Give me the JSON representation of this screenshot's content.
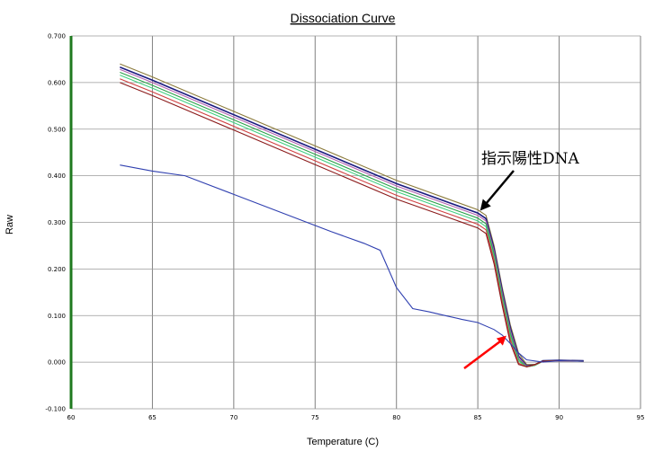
{
  "chart_data": {
    "type": "line",
    "title": "Dissociation Curve",
    "xlabel": "Temperature (C)",
    "ylabel": "Raw",
    "xlim": [
      60,
      95
    ],
    "ylim": [
      -0.1,
      0.7
    ],
    "xticks": [
      60,
      65,
      70,
      75,
      80,
      85,
      90,
      95
    ],
    "yticks": [
      -0.1,
      0.0,
      0.1,
      0.2,
      0.3,
      0.4,
      0.5,
      0.6,
      0.7
    ],
    "ytick_labels": [
      "-0.100",
      "0.000",
      "0.100",
      "0.200",
      "0.300",
      "0.400",
      "0.500",
      "0.600",
      "0.700"
    ],
    "grid": true,
    "series": [
      {
        "color": "#8b7a3a",
        "x": [
          63,
          65,
          70,
          75,
          80,
          85,
          85.5,
          86,
          86.5,
          87,
          87.5,
          88,
          88.5,
          89,
          90,
          91.5
        ],
        "y": [
          0.64,
          0.612,
          0.538,
          0.464,
          0.39,
          0.327,
          0.315,
          0.25,
          0.16,
          0.08,
          0.02,
          -0.005,
          -0.005,
          0.003,
          0.004,
          0.003
        ]
      },
      {
        "color": "#1a1a80",
        "x": [
          63,
          65,
          70,
          75,
          80,
          85,
          85.5,
          86,
          86.5,
          87,
          87.5,
          88,
          88.5,
          89,
          90,
          91.5
        ],
        "y": [
          0.633,
          0.605,
          0.531,
          0.457,
          0.383,
          0.32,
          0.308,
          0.243,
          0.153,
          0.073,
          0.013,
          -0.008,
          -0.006,
          0.003,
          0.004,
          0.003
        ]
      },
      {
        "color": "#b060b0",
        "x": [
          63,
          65,
          70,
          75,
          80,
          85,
          85.5,
          86,
          86.5,
          87,
          87.5,
          88,
          88.5,
          89,
          90,
          91.5
        ],
        "y": [
          0.628,
          0.6,
          0.526,
          0.452,
          0.378,
          0.315,
          0.303,
          0.238,
          0.148,
          0.068,
          0.01,
          -0.009,
          -0.006,
          0.002,
          0.003,
          0.002
        ]
      },
      {
        "color": "#2aa04a",
        "x": [
          63,
          65,
          70,
          75,
          80,
          85,
          85.5,
          86,
          86.5,
          87,
          87.5,
          88,
          88.5,
          89,
          90,
          91.5
        ],
        "y": [
          0.622,
          0.594,
          0.52,
          0.446,
          0.372,
          0.309,
          0.297,
          0.232,
          0.142,
          0.062,
          0.006,
          -0.01,
          -0.007,
          0.002,
          0.003,
          0.002
        ]
      },
      {
        "color": "#40d080",
        "x": [
          63,
          65,
          70,
          75,
          80,
          85,
          85.5,
          86,
          86.5,
          87,
          87.5,
          88,
          88.5,
          89,
          90,
          91.5
        ],
        "y": [
          0.616,
          0.588,
          0.514,
          0.44,
          0.366,
          0.303,
          0.291,
          0.226,
          0.136,
          0.056,
          0.002,
          -0.01,
          -0.007,
          0.002,
          0.003,
          0.002
        ]
      },
      {
        "color": "#d04040",
        "x": [
          63,
          65,
          70,
          75,
          80,
          85,
          85.5,
          86,
          86.5,
          87,
          87.5,
          88,
          88.5,
          89,
          90,
          91.5
        ],
        "y": [
          0.608,
          0.58,
          0.506,
          0.432,
          0.358,
          0.296,
          0.284,
          0.219,
          0.129,
          0.049,
          -0.002,
          -0.01,
          -0.006,
          0.002,
          0.003,
          0.002
        ]
      },
      {
        "color": "#8b1a1a",
        "x": [
          63,
          65,
          70,
          75,
          80,
          85,
          85.5,
          86,
          86.5,
          87,
          87.5,
          88,
          88.5,
          89,
          90,
          91.5
        ],
        "y": [
          0.6,
          0.572,
          0.498,
          0.424,
          0.35,
          0.288,
          0.276,
          0.211,
          0.121,
          0.041,
          -0.005,
          -0.01,
          -0.005,
          0.002,
          0.003,
          0.002
        ]
      },
      {
        "color": "#3040b0",
        "x": [
          63,
          65,
          67,
          70,
          73,
          76,
          78,
          79,
          80,
          81,
          82,
          83,
          84,
          85,
          86,
          86.5,
          87,
          87.5,
          88,
          89,
          90,
          91.5
        ],
        "y": [
          0.423,
          0.41,
          0.4,
          0.36,
          0.32,
          0.28,
          0.255,
          0.24,
          0.16,
          0.115,
          0.108,
          0.1,
          0.092,
          0.085,
          0.07,
          0.058,
          0.04,
          0.02,
          0.005,
          0.0,
          0.003,
          0.002
        ]
      }
    ],
    "annotations": [
      {
        "text": "指示陽性DNA",
        "arrow_color": "#000000",
        "points_to": {
          "x": 85.2,
          "y": 0.327
        }
      },
      {
        "text": "",
        "arrow_color": "#ff0000",
        "points_to": {
          "x": 86.7,
          "y": 0.055
        }
      }
    ]
  }
}
